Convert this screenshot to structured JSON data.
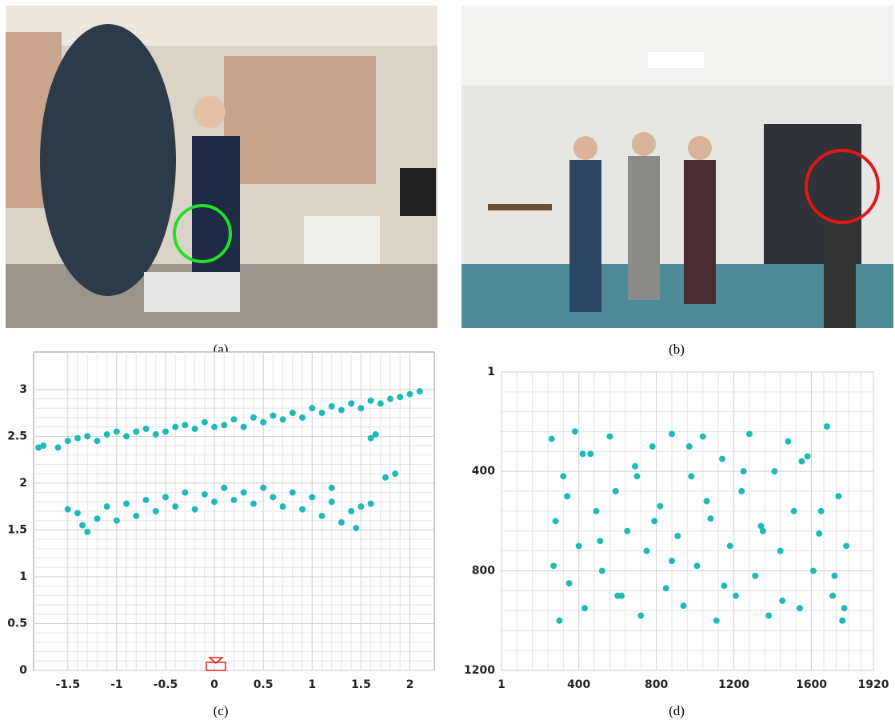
{
  "photos": [
    {
      "caption": "(a)"
    },
    {
      "caption": "(b)"
    }
  ],
  "chart_data": [
    {
      "type": "scatter",
      "caption": "(c)",
      "color": "#1fbab5",
      "grid": true,
      "xlim": [
        -1.85,
        2.25
      ],
      "ylim": [
        0,
        3.4
      ],
      "xticks": [
        -1.5,
        -1,
        -0.5,
        0,
        0.5,
        1,
        1.5,
        2
      ],
      "yticks": [
        0,
        0.5,
        1,
        1.5,
        2,
        2.5,
        3
      ],
      "x": [
        -1.8,
        -1.75,
        -1.6,
        -1.5,
        -1.4,
        -1.3,
        -1.2,
        -1.1,
        -1.0,
        -0.9,
        -0.8,
        -0.7,
        -0.6,
        -0.5,
        -0.4,
        -0.3,
        -0.2,
        -0.1,
        0.0,
        0.1,
        0.2,
        0.3,
        0.4,
        0.5,
        0.6,
        0.7,
        0.8,
        0.9,
        1.0,
        1.1,
        1.2,
        1.3,
        1.4,
        1.5,
        1.6,
        1.7,
        1.8,
        1.9,
        2.0,
        2.1,
        1.6,
        1.65,
        1.85,
        1.75,
        -1.5,
        -1.4,
        -1.35,
        -1.3,
        -1.2,
        -1.1,
        -1.0,
        -0.9,
        -0.8,
        -0.7,
        -0.6,
        -0.5,
        -0.4,
        -0.3,
        -0.2,
        -0.1,
        0,
        0.1,
        0.2,
        0.3,
        0.4,
        0.5,
        0.6,
        0.7,
        0.8,
        0.9,
        1.0,
        1.1,
        1.2,
        1.3,
        1.4,
        1.5,
        1.6,
        1.2,
        1.45
      ],
      "y": [
        2.38,
        2.4,
        2.38,
        2.45,
        2.48,
        2.5,
        2.45,
        2.52,
        2.55,
        2.5,
        2.55,
        2.58,
        2.52,
        2.55,
        2.6,
        2.62,
        2.58,
        2.65,
        2.6,
        2.62,
        2.68,
        2.6,
        2.7,
        2.65,
        2.72,
        2.68,
        2.75,
        2.7,
        2.8,
        2.75,
        2.82,
        2.78,
        2.85,
        2.8,
        2.88,
        2.85,
        2.9,
        2.92,
        2.95,
        2.98,
        2.48,
        2.52,
        2.1,
        2.06,
        1.72,
        1.68,
        1.55,
        1.48,
        1.62,
        1.75,
        1.6,
        1.78,
        1.65,
        1.82,
        1.7,
        1.85,
        1.75,
        1.9,
        1.72,
        1.88,
        1.8,
        1.95,
        1.82,
        1.9,
        1.78,
        1.95,
        1.85,
        1.75,
        1.9,
        1.72,
        1.85,
        1.65,
        1.8,
        1.58,
        1.7,
        1.75,
        1.78,
        1.95,
        1.52
      ]
    },
    {
      "type": "scatter",
      "caption": "(d)",
      "color": "#1fbab5",
      "grid": true,
      "xlim": [
        1,
        1920
      ],
      "ylim": [
        1200,
        1
      ],
      "xticks": [
        1,
        400,
        800,
        1200,
        1600,
        1920
      ],
      "yticks": [
        1,
        400,
        800,
        1200
      ],
      "x": [
        260,
        280,
        300,
        320,
        350,
        380,
        400,
        430,
        460,
        490,
        520,
        560,
        590,
        620,
        650,
        690,
        720,
        750,
        780,
        820,
        850,
        880,
        910,
        940,
        980,
        1010,
        1040,
        1080,
        1110,
        1140,
        1180,
        1210,
        1240,
        1280,
        1310,
        1340,
        1380,
        1410,
        1440,
        1480,
        1510,
        1540,
        1580,
        1610,
        1640,
        1680,
        1710,
        1740,
        1760,
        1780,
        270,
        340,
        420,
        510,
        600,
        700,
        790,
        880,
        970,
        1060,
        1150,
        1250,
        1350,
        1450,
        1550,
        1650,
        1720,
        1770
      ],
      "y": [
        270,
        600,
        1000,
        420,
        850,
        240,
        700,
        950,
        330,
        560,
        800,
        260,
        480,
        900,
        640,
        380,
        980,
        720,
        300,
        540,
        870,
        250,
        660,
        940,
        420,
        780,
        260,
        590,
        1000,
        350,
        700,
        900,
        480,
        250,
        820,
        620,
        980,
        400,
        720,
        280,
        560,
        950,
        340,
        800,
        650,
        220,
        900,
        500,
        1000,
        700,
        780,
        500,
        330,
        680,
        900,
        420,
        600,
        760,
        300,
        520,
        860,
        400,
        640,
        920,
        360,
        560,
        820,
        950
      ]
    }
  ]
}
